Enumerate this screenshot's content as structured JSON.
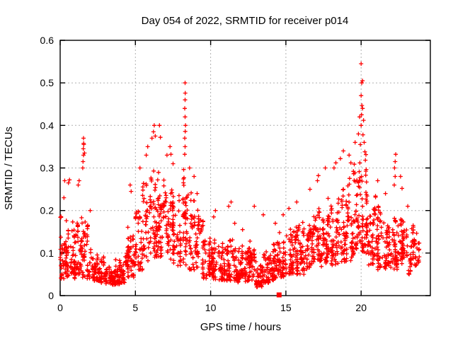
{
  "window": {
    "background": "#ffffff"
  },
  "chart_data": {
    "type": "scatter",
    "title": "Day 054 of 2022, SRMTID for receiver p014",
    "xlabel": "GPS time / hours",
    "ylabel": "SRMTID / TECUs",
    "xlim": [
      0,
      24.6
    ],
    "ylim": [
      0,
      0.6
    ],
    "xticks": [
      0,
      5,
      10,
      15,
      20
    ],
    "xtick_labels": [
      "0",
      "5",
      "10",
      "15",
      "20"
    ],
    "yticks": [
      0,
      0.1,
      0.2,
      0.3,
      0.4,
      0.5,
      0.6
    ],
    "ytick_labels": [
      "0",
      "0.1",
      "0.2",
      "0.3",
      "0.4",
      "0.5",
      "0.6"
    ],
    "grid": true,
    "grid_style": "dashed",
    "grid_color": "#b0b0b0",
    "marker": "plus",
    "marker_color": "#ff0000",
    "frame_color": "#000000",
    "legend": "none",
    "series_name": "SRMTID",
    "bin_width": 0.5,
    "bins_format": [
      "x_start",
      "count",
      "y_min",
      "y_max"
    ],
    "density_bins": [
      [
        0.0,
        55,
        0.04,
        0.2
      ],
      [
        0.5,
        48,
        0.04,
        0.18
      ],
      [
        1.0,
        45,
        0.05,
        0.21
      ],
      [
        1.5,
        45,
        0.04,
        0.2
      ],
      [
        2.0,
        42,
        0.035,
        0.14
      ],
      [
        2.5,
        45,
        0.03,
        0.12
      ],
      [
        3.0,
        50,
        0.025,
        0.09
      ],
      [
        3.5,
        55,
        0.025,
        0.085
      ],
      [
        4.0,
        45,
        0.03,
        0.11
      ],
      [
        4.5,
        40,
        0.04,
        0.18
      ],
      [
        5.0,
        45,
        0.06,
        0.24
      ],
      [
        5.5,
        45,
        0.08,
        0.3
      ],
      [
        6.0,
        50,
        0.09,
        0.33
      ],
      [
        6.5,
        50,
        0.09,
        0.32
      ],
      [
        7.0,
        50,
        0.08,
        0.3
      ],
      [
        7.5,
        50,
        0.07,
        0.28
      ],
      [
        8.0,
        45,
        0.07,
        0.3
      ],
      [
        8.5,
        40,
        0.06,
        0.26
      ],
      [
        9.0,
        42,
        0.05,
        0.22
      ],
      [
        9.5,
        45,
        0.04,
        0.15
      ],
      [
        10.0,
        48,
        0.035,
        0.14
      ],
      [
        10.5,
        50,
        0.035,
        0.13
      ],
      [
        11.0,
        50,
        0.035,
        0.14
      ],
      [
        11.5,
        52,
        0.03,
        0.13
      ],
      [
        12.0,
        52,
        0.03,
        0.12
      ],
      [
        12.5,
        52,
        0.03,
        0.13
      ],
      [
        13.0,
        52,
        0.02,
        0.1
      ],
      [
        13.5,
        50,
        0.03,
        0.12
      ],
      [
        14.0,
        46,
        0.035,
        0.14
      ],
      [
        14.5,
        46,
        0.04,
        0.16
      ],
      [
        15.0,
        46,
        0.05,
        0.17
      ],
      [
        15.5,
        46,
        0.05,
        0.19
      ],
      [
        16.0,
        46,
        0.05,
        0.2
      ],
      [
        16.5,
        46,
        0.06,
        0.22
      ],
      [
        17.0,
        46,
        0.06,
        0.24
      ],
      [
        17.5,
        46,
        0.07,
        0.24
      ],
      [
        18.0,
        46,
        0.07,
        0.26
      ],
      [
        18.5,
        46,
        0.08,
        0.28
      ],
      [
        19.0,
        46,
        0.08,
        0.3
      ],
      [
        19.5,
        50,
        0.11,
        0.33
      ],
      [
        20.0,
        55,
        0.1,
        0.37
      ],
      [
        20.5,
        46,
        0.07,
        0.26
      ],
      [
        21.0,
        45,
        0.06,
        0.22
      ],
      [
        21.5,
        45,
        0.06,
        0.2
      ],
      [
        22.0,
        45,
        0.06,
        0.22
      ],
      [
        22.5,
        45,
        0.05,
        0.2
      ],
      [
        23.0,
        40,
        0.05,
        0.18
      ],
      [
        23.5,
        26,
        0.07,
        0.17
      ]
    ],
    "outlier_points": [
      [
        0.25,
        0.23
      ],
      [
        0.3,
        0.27
      ],
      [
        0.55,
        0.265
      ],
      [
        0.62,
        0.272
      ],
      [
        1.2,
        0.26
      ],
      [
        1.26,
        0.27
      ],
      [
        1.5,
        0.3
      ],
      [
        1.52,
        0.315
      ],
      [
        1.55,
        0.33
      ],
      [
        1.54,
        0.345
      ],
      [
        1.57,
        0.355
      ],
      [
        1.56,
        0.358
      ],
      [
        1.55,
        0.37
      ],
      [
        1.62,
        0.335
      ],
      [
        2.0,
        0.2
      ],
      [
        4.65,
        0.26
      ],
      [
        4.72,
        0.245
      ],
      [
        5.3,
        0.3
      ],
      [
        5.72,
        0.33
      ],
      [
        5.82,
        0.35
      ],
      [
        6.1,
        0.37
      ],
      [
        6.2,
        0.385
      ],
      [
        6.25,
        0.4
      ],
      [
        6.32,
        0.375
      ],
      [
        6.6,
        0.4
      ],
      [
        6.66,
        0.372
      ],
      [
        7.1,
        0.33
      ],
      [
        7.3,
        0.35
      ],
      [
        7.36,
        0.332
      ],
      [
        7.5,
        0.31
      ],
      [
        8.28,
        0.332
      ],
      [
        8.3,
        0.35
      ],
      [
        8.28,
        0.37
      ],
      [
        8.31,
        0.386
      ],
      [
        8.33,
        0.4
      ],
      [
        8.3,
        0.42
      ],
      [
        8.28,
        0.44
      ],
      [
        8.3,
        0.46
      ],
      [
        8.31,
        0.476
      ],
      [
        8.3,
        0.5
      ],
      [
        8.6,
        0.3
      ],
      [
        8.9,
        0.28
      ],
      [
        9.1,
        0.24
      ],
      [
        10.2,
        0.185
      ],
      [
        10.32,
        0.2
      ],
      [
        11.2,
        0.21
      ],
      [
        11.36,
        0.22
      ],
      [
        11.6,
        0.17
      ],
      [
        12.12,
        0.155
      ],
      [
        12.9,
        0.21
      ],
      [
        13.5,
        0.19
      ],
      [
        14.3,
        0.17
      ],
      [
        14.82,
        0.19
      ],
      [
        15.2,
        0.205
      ],
      [
        15.72,
        0.22
      ],
      [
        16.6,
        0.25
      ],
      [
        17.1,
        0.27
      ],
      [
        17.16,
        0.282
      ],
      [
        17.62,
        0.3
      ],
      [
        18.2,
        0.3
      ],
      [
        18.32,
        0.312
      ],
      [
        18.62,
        0.322
      ],
      [
        18.82,
        0.34
      ],
      [
        19.2,
        0.33
      ],
      [
        19.32,
        0.312
      ],
      [
        19.6,
        0.36
      ],
      [
        19.82,
        0.38
      ],
      [
        19.9,
        0.42
      ],
      [
        19.95,
        0.355
      ],
      [
        20.0,
        0.4
      ],
      [
        20.03,
        0.425
      ],
      [
        20.05,
        0.447
      ],
      [
        20.0,
        0.47
      ],
      [
        20.04,
        0.5
      ],
      [
        20.09,
        0.505
      ],
      [
        20.0,
        0.545
      ],
      [
        20.1,
        0.44
      ],
      [
        20.16,
        0.412
      ],
      [
        20.12,
        0.378
      ],
      [
        20.2,
        0.36
      ],
      [
        20.25,
        0.338
      ],
      [
        21.1,
        0.27
      ],
      [
        21.62,
        0.24
      ],
      [
        22.2,
        0.26
      ],
      [
        22.26,
        0.28
      ],
      [
        22.22,
        0.3
      ],
      [
        22.26,
        0.315
      ],
      [
        22.3,
        0.332
      ],
      [
        22.62,
        0.28
      ],
      [
        22.72,
        0.252
      ],
      [
        23.1,
        0.21
      ]
    ],
    "square_marker_point": {
      "x": 14.55,
      "y": 0.0
    }
  }
}
